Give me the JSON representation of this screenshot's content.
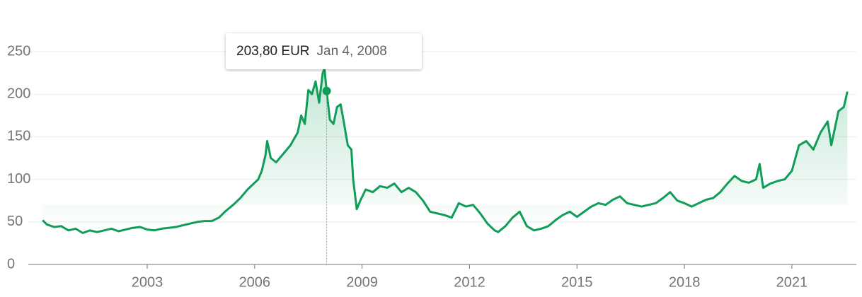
{
  "chart_data": {
    "type": "line",
    "color": "#0f9d58",
    "xlim": [
      1999.68,
      2022.8
    ],
    "ylim": [
      0,
      250
    ],
    "xticks": [
      2003,
      2006,
      2009,
      2012,
      2015,
      2018,
      2021
    ],
    "yticks": [
      0,
      50,
      100,
      150,
      200,
      250
    ],
    "grid": true,
    "x": [
      2000.08,
      2000.2,
      2000.4,
      2000.6,
      2000.8,
      2001.0,
      2001.2,
      2001.4,
      2001.6,
      2001.8,
      2002.0,
      2002.2,
      2002.4,
      2002.6,
      2002.8,
      2003.0,
      2003.2,
      2003.4,
      2003.6,
      2003.8,
      2004.0,
      2004.2,
      2004.4,
      2004.6,
      2004.8,
      2005.0,
      2005.2,
      2005.4,
      2005.6,
      2005.8,
      2006.0,
      2006.1,
      2006.2,
      2006.3,
      2006.35,
      2006.45,
      2006.6,
      2006.8,
      2007.0,
      2007.2,
      2007.3,
      2007.4,
      2007.5,
      2007.6,
      2007.7,
      2007.8,
      2007.9,
      2007.95,
      2008.01,
      2008.1,
      2008.2,
      2008.3,
      2008.4,
      2008.5,
      2008.6,
      2008.7,
      2008.75,
      2008.85,
      2008.95,
      2009.1,
      2009.3,
      2009.5,
      2009.7,
      2009.9,
      2010.1,
      2010.3,
      2010.5,
      2010.7,
      2010.9,
      2011.1,
      2011.3,
      2011.5,
      2011.7,
      2011.9,
      2012.1,
      2012.3,
      2012.5,
      2012.7,
      2012.8,
      2013.0,
      2013.2,
      2013.4,
      2013.6,
      2013.8,
      2014.0,
      2014.2,
      2014.4,
      2014.6,
      2014.8,
      2015.0,
      2015.2,
      2015.4,
      2015.6,
      2015.8,
      2016.0,
      2016.2,
      2016.4,
      2016.6,
      2016.8,
      2017.0,
      2017.2,
      2017.4,
      2017.6,
      2017.8,
      2018.0,
      2018.2,
      2018.4,
      2018.6,
      2018.8,
      2019.0,
      2019.2,
      2019.4,
      2019.6,
      2019.8,
      2020.0,
      2020.1,
      2020.2,
      2020.4,
      2020.6,
      2020.8,
      2021.0,
      2021.2,
      2021.4,
      2021.6,
      2021.8,
      2022.0,
      2022.1,
      2022.3,
      2022.45,
      2022.55
    ],
    "values": [
      52,
      47,
      44,
      45,
      40,
      42,
      37,
      40,
      38,
      40,
      42,
      39,
      41,
      43,
      44,
      41,
      40,
      42,
      43,
      44,
      46,
      48,
      50,
      51,
      51,
      55,
      63,
      70,
      78,
      88,
      96,
      100,
      110,
      128,
      145,
      125,
      120,
      130,
      140,
      155,
      175,
      165,
      205,
      200,
      215,
      190,
      225,
      230,
      203.8,
      170,
      165,
      185,
      188,
      165,
      140,
      135,
      100,
      65,
      75,
      88,
      85,
      92,
      90,
      95,
      85,
      90,
      85,
      75,
      62,
      60,
      58,
      55,
      72,
      68,
      70,
      60,
      48,
      40,
      38,
      45,
      55,
      62,
      45,
      40,
      42,
      45,
      52,
      58,
      62,
      56,
      62,
      68,
      72,
      70,
      76,
      80,
      72,
      70,
      68,
      70,
      72,
      78,
      85,
      75,
      72,
      68,
      72,
      76,
      78,
      85,
      95,
      104,
      98,
      96,
      100,
      118,
      90,
      95,
      98,
      100,
      110,
      140,
      145,
      135,
      155,
      168,
      140,
      180,
      185,
      203
    ],
    "tooltip": {
      "x": 2008.01,
      "value": 203.8,
      "value_label": "203,80 EUR",
      "date": "Jan 4, 2008"
    }
  }
}
